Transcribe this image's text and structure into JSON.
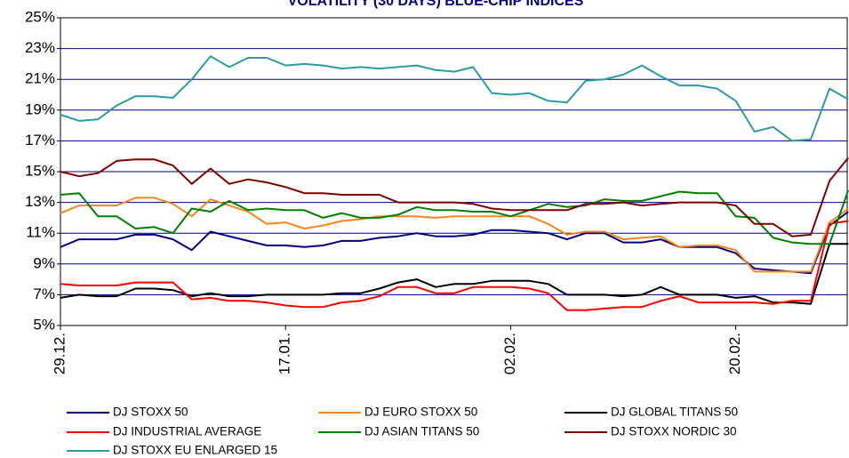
{
  "chart_data": {
    "type": "line",
    "title": "VOLATILITY (30 DAYS) BLUE-CHIP INDICES",
    "categories": [
      "29.12.",
      null,
      null,
      null,
      null,
      null,
      null,
      null,
      null,
      null,
      null,
      null,
      "17.01.",
      null,
      null,
      null,
      null,
      null,
      null,
      null,
      null,
      null,
      null,
      null,
      "02.02.",
      null,
      null,
      null,
      null,
      null,
      null,
      null,
      null,
      null,
      null,
      null,
      "20.02.",
      null,
      null,
      null,
      null,
      null,
      null
    ],
    "ylim": [
      5,
      25
    ],
    "yticks": [
      {
        "value": 5,
        "label": "5%"
      },
      {
        "value": 7,
        "label": "7%"
      },
      {
        "value": 9,
        "label": "9%"
      },
      {
        "value": 11,
        "label": "11%"
      },
      {
        "value": 13,
        "label": "13%"
      },
      {
        "value": 15,
        "label": "15%"
      },
      {
        "value": 17,
        "label": "17%"
      },
      {
        "value": 19,
        "label": "19%"
      },
      {
        "value": 21,
        "label": "21%"
      },
      {
        "value": 23,
        "label": "23%"
      },
      {
        "value": 25,
        "label": "25%"
      }
    ],
    "grid": true,
    "legend": "bottom",
    "series": [
      {
        "name": "DJ STOXX 50",
        "color": "#000080",
        "values": [
          10.1,
          10.6,
          10.6,
          10.6,
          10.9,
          10.9,
          10.6,
          9.9,
          11.1,
          10.8,
          10.5,
          10.2,
          10.2,
          10.1,
          10.2,
          10.5,
          10.5,
          10.7,
          10.8,
          11.0,
          10.8,
          10.8,
          10.9,
          11.2,
          11.2,
          11.1,
          11.0,
          10.6,
          11.0,
          11.0,
          10.4,
          10.4,
          10.6,
          10.1,
          10.1,
          10.1,
          9.7,
          8.7,
          8.6,
          8.5,
          8.4,
          11.5,
          12.4
        ]
      },
      {
        "name": "DJ EURO STOXX 50",
        "color": "#f7861e",
        "values": [
          12.3,
          12.8,
          12.8,
          12.8,
          13.3,
          13.3,
          12.9,
          12.1,
          13.2,
          12.8,
          12.4,
          11.6,
          11.7,
          11.3,
          11.5,
          11.8,
          11.9,
          12.1,
          12.1,
          12.1,
          12.0,
          12.1,
          12.1,
          12.1,
          12.1,
          12.1,
          11.6,
          10.9,
          11.1,
          11.1,
          10.6,
          10.7,
          10.8,
          10.1,
          10.2,
          10.2,
          9.9,
          8.5,
          8.5,
          8.5,
          8.5,
          11.7,
          12.6
        ]
      },
      {
        "name": "DJ GLOBAL TITANS 50",
        "color": "#000000",
        "values": [
          6.8,
          7.0,
          6.9,
          6.9,
          7.4,
          7.4,
          7.3,
          6.9,
          7.1,
          6.9,
          6.9,
          7.0,
          7.0,
          7.0,
          7.0,
          7.1,
          7.1,
          7.4,
          7.8,
          8.0,
          7.5,
          7.7,
          7.7,
          7.9,
          7.9,
          7.9,
          7.7,
          7.0,
          7.0,
          7.0,
          6.9,
          7.0,
          7.5,
          7.0,
          7.0,
          7.0,
          6.8,
          6.9,
          6.5,
          6.5,
          6.4,
          10.3,
          10.3
        ]
      },
      {
        "name": "DJ INDUSTRIAL AVERAGE",
        "color": "#ff0000",
        "values": [
          7.7,
          7.6,
          7.6,
          7.6,
          7.8,
          7.8,
          7.8,
          6.7,
          6.8,
          6.6,
          6.6,
          6.5,
          6.3,
          6.2,
          6.2,
          6.5,
          6.6,
          6.9,
          7.5,
          7.5,
          7.1,
          7.1,
          7.5,
          7.5,
          7.5,
          7.4,
          7.1,
          6.0,
          6.0,
          6.1,
          6.2,
          6.2,
          6.6,
          6.9,
          6.5,
          6.5,
          6.5,
          6.5,
          6.4,
          6.6,
          6.6,
          11.6,
          11.8
        ]
      },
      {
        "name": "DJ ASIAN TITANS 50",
        "color": "#008000",
        "values": [
          13.5,
          13.6,
          12.1,
          12.1,
          11.3,
          11.4,
          11.0,
          12.6,
          12.4,
          13.1,
          12.5,
          12.6,
          12.5,
          12.5,
          12.0,
          12.3,
          12.0,
          12.0,
          12.2,
          12.7,
          12.5,
          12.5,
          12.4,
          12.4,
          12.1,
          12.5,
          12.9,
          12.7,
          12.8,
          13.2,
          13.1,
          13.1,
          13.4,
          13.7,
          13.6,
          13.6,
          12.1,
          12.0,
          10.7,
          10.4,
          10.3,
          10.3,
          13.8
        ]
      },
      {
        "name": "DJ STOXX NORDIC 30",
        "color": "#800000",
        "values": [
          15.0,
          14.7,
          14.9,
          15.7,
          15.8,
          15.8,
          15.4,
          14.2,
          15.2,
          14.2,
          14.5,
          14.3,
          14.0,
          13.6,
          13.6,
          13.5,
          13.5,
          13.5,
          13.0,
          13.0,
          13.0,
          13.0,
          12.9,
          12.6,
          12.5,
          12.5,
          12.5,
          12.5,
          12.9,
          12.9,
          13.0,
          12.8,
          12.9,
          13.0,
          13.0,
          13.0,
          12.8,
          11.6,
          11.6,
          10.8,
          10.9,
          14.4,
          15.9
        ]
      },
      {
        "name": "DJ STOXX EU ENLARGED 15",
        "color": "#2e9c9c",
        "values": [
          18.7,
          18.3,
          18.4,
          19.3,
          19.9,
          19.9,
          19.8,
          21.0,
          22.5,
          21.8,
          22.4,
          22.4,
          21.9,
          22.0,
          21.9,
          21.7,
          21.8,
          21.7,
          21.8,
          21.9,
          21.6,
          21.5,
          21.8,
          20.1,
          20.0,
          20.1,
          19.6,
          19.5,
          20.9,
          21.0,
          21.3,
          21.9,
          21.2,
          20.6,
          20.6,
          20.4,
          19.6,
          17.6,
          17.9,
          17.0,
          17.1,
          20.4,
          19.7
        ]
      }
    ]
  }
}
